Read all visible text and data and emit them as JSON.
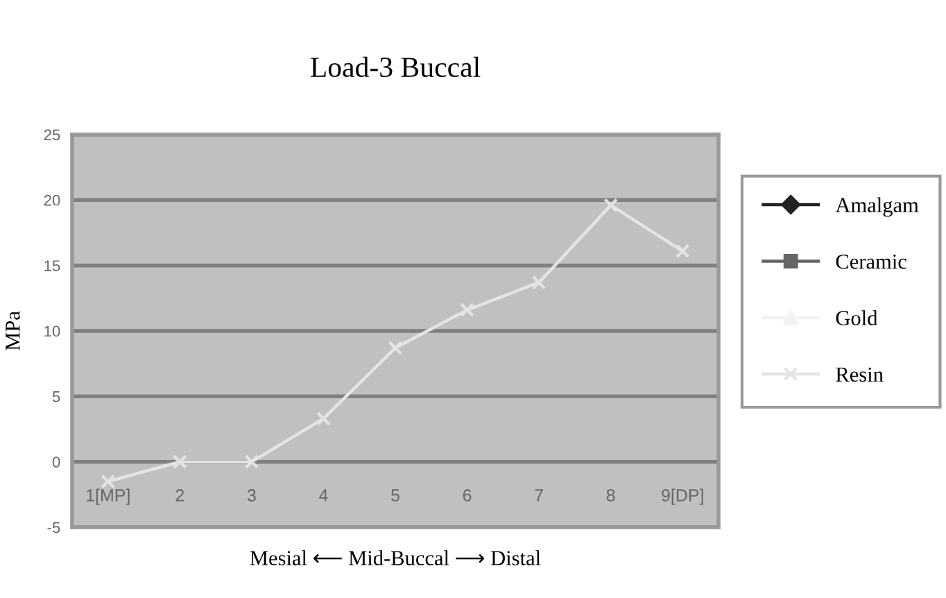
{
  "chart_data": {
    "type": "line",
    "title": "Load-3 Buccal",
    "xlabel": "Mesial ⟵ Mid-Buccal ⟶ Distal",
    "ylabel": "MPa",
    "categories": [
      "1[MP]",
      "2",
      "3",
      "4",
      "5",
      "6",
      "7",
      "8",
      "9[DP]"
    ],
    "series": [
      {
        "name": "Amalgam",
        "color": "#222222",
        "marker": "diamond",
        "values": [
          null,
          null,
          null,
          null,
          null,
          null,
          null,
          null,
          null
        ]
      },
      {
        "name": "Ceramic",
        "color": "#666666",
        "marker": "square",
        "values": [
          null,
          null,
          null,
          null,
          null,
          null,
          null,
          null,
          null
        ]
      },
      {
        "name": "Gold",
        "color": "#f2f2f2",
        "marker": "triangle",
        "values": [
          null,
          null,
          null,
          null,
          null,
          null,
          null,
          null,
          null
        ]
      },
      {
        "name": "Resin",
        "color": "#e4e4e4",
        "marker": "cross",
        "values": [
          -1.5,
          0,
          0,
          3.3,
          8.7,
          11.6,
          13.7,
          19.6,
          16.1
        ]
      }
    ],
    "ylim": [
      -5,
      25
    ],
    "yticks": [
      -5,
      0,
      5,
      10,
      15,
      20,
      25
    ],
    "grid": "y",
    "legend": "right",
    "line_style": "solid"
  }
}
